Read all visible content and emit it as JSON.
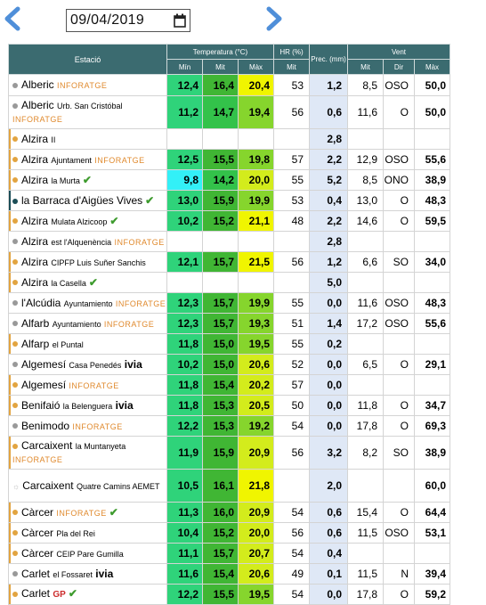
{
  "date": "09/04/2019",
  "headers": {
    "station": "Estació",
    "temp": "Temperatura (°C)",
    "hr": "HR (%)",
    "prec": "Prec. (mm)",
    "wind": "Vent",
    "t_min": "Mín",
    "t_mit": "Mit",
    "t_max": "Màx",
    "hr_mit": "Mit",
    "w_mit": "Mit",
    "w_dir": "Dir",
    "w_max": "Màx"
  },
  "colors": {
    "header": "#3b6b70",
    "prec_bg": "#dfe8f6",
    "yellow": "#f0f500",
    "cyan": "#33f0f7"
  },
  "rows": [
    {
      "name": "Alberic",
      "sub": "",
      "brand": "INFORATGE",
      "dot": "gy",
      "tmin": "12,4",
      "tmit": "16,4",
      "tmax": "20,4",
      "hr": "53",
      "prec": "1,2",
      "wm": "8,5",
      "wd": "OSO",
      "wx": "50,0",
      "c": [
        "#2fd37a",
        "#40b634",
        "#f0f500"
      ],
      "h": 24
    },
    {
      "name": "Alberic",
      "sub": "Urb. San Cristóbal",
      "brand": "INFORATGE",
      "dot": "gy",
      "tmin": "11,2",
      "tmit": "14,7",
      "tmax": "19,4",
      "hr": "56",
      "prec": "0,6",
      "wm": "11,6",
      "wd": "O",
      "wx": "50,0",
      "c": [
        "#2fd37a",
        "#33c24a",
        "#86d52d"
      ],
      "h": 37
    },
    {
      "name": "Alzira",
      "sub": "II",
      "brand": "",
      "dot": "or",
      "tmin": "",
      "tmit": "",
      "tmax": "",
      "hr": "",
      "prec": "2,8",
      "wm": "",
      "wd": "",
      "wx": "",
      "c": [
        "",
        "",
        ""
      ],
      "h": 22
    },
    {
      "name": "Alzira",
      "sub": "Ajuntament",
      "brand": "INFORATGE",
      "dot": "or",
      "tmin": "12,5",
      "tmit": "15,5",
      "tmax": "19,8",
      "hr": "57",
      "prec": "2,2",
      "wm": "12,9",
      "wd": "OSO",
      "wx": "55,6",
      "c": [
        "#2fd37a",
        "#40b634",
        "#86d52d"
      ],
      "h": 22
    },
    {
      "name": "Alzira",
      "sub": "la Murta",
      "brand": "",
      "dot": "or",
      "tick": true,
      "tmin": "9,8",
      "tmit": "14,2",
      "tmax": "20,0",
      "hr": "55",
      "prec": "5,2",
      "wm": "8,5",
      "wd": "ONO",
      "wx": "38,9",
      "c": [
        "#33f0f7",
        "#33c24a",
        "#d3ec1c"
      ],
      "h": 22
    },
    {
      "name": "la Barraca d'Aigües Vives",
      "sub": "",
      "brand": "",
      "dot": "tl",
      "tick": true,
      "tmin": "13,0",
      "tmit": "15,9",
      "tmax": "19,9",
      "hr": "53",
      "prec": "0,4",
      "wm": "13,0",
      "wd": "O",
      "wx": "48,3",
      "c": [
        "#2fd37a",
        "#40b634",
        "#86d52d"
      ],
      "h": 22
    },
    {
      "name": "Alzira",
      "sub": "Mulata Alzicoop",
      "brand": "",
      "dot": "or",
      "tick": true,
      "tmin": "10,2",
      "tmit": "15,2",
      "tmax": "21,1",
      "hr": "48",
      "prec": "2,2",
      "wm": "14,6",
      "wd": "O",
      "wx": "59,5",
      "c": [
        "#2fd37a",
        "#40b634",
        "#f0f500"
      ],
      "h": 22
    },
    {
      "name": "Alzira",
      "sub": "est l'Alquenència",
      "brand": "INFORATGE",
      "dot": "gy",
      "tmin": "",
      "tmit": "",
      "tmax": "",
      "hr": "",
      "prec": "2,8",
      "wm": "",
      "wd": "",
      "wx": "",
      "c": [
        "",
        "",
        ""
      ],
      "h": 22
    },
    {
      "name": "Alzira",
      "sub": "CIPFP Luis Suñer Sanchis",
      "brand": "",
      "dot": "or",
      "tmin": "12,1",
      "tmit": "15,7",
      "tmax": "21,5",
      "hr": "56",
      "prec": "1,2",
      "wm": "6,6",
      "wd": "SO",
      "wx": "34,0",
      "c": [
        "#2fd37a",
        "#40b634",
        "#f0f500"
      ],
      "h": 22
    },
    {
      "name": "Alzira",
      "sub": "la Casella",
      "brand": "",
      "dot": "or",
      "tick": true,
      "tmin": "",
      "tmit": "",
      "tmax": "",
      "hr": "",
      "prec": "5,0",
      "wm": "",
      "wd": "",
      "wx": "",
      "c": [
        "",
        "",
        ""
      ],
      "h": 22
    },
    {
      "name": "l'Alcúdia",
      "sub": "Ayuntamiento",
      "brand": "INFORATGE",
      "dot": "gy",
      "tmin": "12,3",
      "tmit": "15,7",
      "tmax": "19,9",
      "hr": "55",
      "prec": "0,0",
      "wm": "11,6",
      "wd": "OSO",
      "wx": "48,3",
      "c": [
        "#2fd37a",
        "#40b634",
        "#86d52d"
      ],
      "h": 22
    },
    {
      "name": "Alfarb",
      "sub": "Ayuntamiento",
      "brand": "INFORATGE",
      "dot": "gy",
      "tmin": "12,3",
      "tmit": "15,7",
      "tmax": "19,3",
      "hr": "51",
      "prec": "1,4",
      "wm": "17,2",
      "wd": "OSO",
      "wx": "55,6",
      "c": [
        "#2fd37a",
        "#40b634",
        "#86d52d"
      ],
      "h": 22
    },
    {
      "name": "Alfarp",
      "sub": "el Puntal",
      "brand": "",
      "dot": "or",
      "tmin": "11,8",
      "tmit": "15,0",
      "tmax": "19,5",
      "hr": "55",
      "prec": "0,2",
      "wm": "",
      "wd": "",
      "wx": "",
      "c": [
        "#2fd37a",
        "#40b634",
        "#86d52d"
      ],
      "h": 22
    },
    {
      "name": "Algemesí",
      "sub": "Casa Penedés",
      "brand": "ivia",
      "dot": "gy",
      "tmin": "10,2",
      "tmit": "15,0",
      "tmax": "20,6",
      "hr": "52",
      "prec": "0,0",
      "wm": "6,5",
      "wd": "O",
      "wx": "29,1",
      "c": [
        "#2fd37a",
        "#40b634",
        "#d3ec1c"
      ],
      "h": 22
    },
    {
      "name": "Algemesí",
      "sub": "",
      "brand": "INFORATGE",
      "dot": "or",
      "tmin": "11,8",
      "tmit": "15,4",
      "tmax": "20,2",
      "hr": "57",
      "prec": "0,0",
      "wm": "",
      "wd": "",
      "wx": "",
      "c": [
        "#2fd37a",
        "#40b634",
        "#d3ec1c"
      ],
      "h": 22
    },
    {
      "name": "Benifaió",
      "sub": "la Belenguera",
      "brand": "ivia",
      "dot": "or",
      "tmin": "11,8",
      "tmit": "15,3",
      "tmax": "20,5",
      "hr": "50",
      "prec": "0,0",
      "wm": "11,8",
      "wd": "O",
      "wx": "34,7",
      "c": [
        "#2fd37a",
        "#40b634",
        "#d3ec1c"
      ],
      "h": 22
    },
    {
      "name": "Benimodo",
      "sub": "",
      "brand": "INFORATGE",
      "dot": "gy",
      "tmin": "12,2",
      "tmit": "15,3",
      "tmax": "19,2",
      "hr": "54",
      "prec": "0,0",
      "wm": "17,8",
      "wd": "O",
      "wx": "69,3",
      "c": [
        "#2fd37a",
        "#40b634",
        "#86d52d"
      ],
      "h": 22
    },
    {
      "name": "Carcaixent",
      "sub": "la Muntanyeta",
      "brand": "INFORATGE",
      "dot": "or",
      "tmin": "11,9",
      "tmit": "15,9",
      "tmax": "20,9",
      "hr": "56",
      "prec": "3,2",
      "wm": "8,2",
      "wd": "SO",
      "wx": "38,9",
      "c": [
        "#2fd37a",
        "#40b634",
        "#d3ec1c"
      ],
      "h": 37
    },
    {
      "name": "Carcaixent",
      "sub": "Quatre Camins AEMET",
      "brand": "",
      "dot": "sun",
      "tmin": "10,5",
      "tmit": "16,1",
      "tmax": "21,8",
      "hr": "",
      "prec": "2,0",
      "wm": "",
      "wd": "",
      "wx": "60,0",
      "c": [
        "#2fd37a",
        "#40b634",
        "#f0f500"
      ],
      "h": 37
    },
    {
      "name": "Càrcer",
      "sub": "",
      "brand": "INFORATGE",
      "dot": "or",
      "tick": true,
      "tmin": "11,3",
      "tmit": "16,0",
      "tmax": "20,9",
      "hr": "54",
      "prec": "0,6",
      "wm": "15,4",
      "wd": "O",
      "wx": "64,4",
      "c": [
        "#2fd37a",
        "#40b634",
        "#d3ec1c"
      ],
      "h": 22
    },
    {
      "name": "Càrcer",
      "sub": "Pla del Rei",
      "brand": "",
      "dot": "or",
      "tmin": "10,4",
      "tmit": "15,2",
      "tmax": "20,0",
      "hr": "56",
      "prec": "0,6",
      "wm": "11,5",
      "wd": "OSO",
      "wx": "53,1",
      "c": [
        "#2fd37a",
        "#40b634",
        "#d3ec1c"
      ],
      "h": 22
    },
    {
      "name": "Càrcer",
      "sub": "CEIP Pare Gumilla",
      "brand": "",
      "dot": "or",
      "tmin": "11,1",
      "tmit": "15,7",
      "tmax": "20,7",
      "hr": "54",
      "prec": "0,4",
      "wm": "",
      "wd": "",
      "wx": "",
      "c": [
        "#2fd37a",
        "#40b634",
        "#d3ec1c"
      ],
      "h": 22
    },
    {
      "name": "Carlet",
      "sub": "el Fossaret",
      "brand": "ivia",
      "dot": "gy",
      "tmin": "11,6",
      "tmit": "15,4",
      "tmax": "20,6",
      "hr": "49",
      "prec": "0,1",
      "wm": "11,5",
      "wd": "N",
      "wx": "39,4",
      "c": [
        "#2fd37a",
        "#40b634",
        "#d3ec1c"
      ],
      "h": 22
    },
    {
      "name": "Carlet",
      "sub": "",
      "brand": "GP",
      "dot": "or",
      "tick": true,
      "tmin": "12,2",
      "tmit": "15,5",
      "tmax": "19,5",
      "hr": "54",
      "prec": "0,0",
      "wm": "17,8",
      "wd": "O",
      "wx": "59,2",
      "c": [
        "#2fd37a",
        "#40b634",
        "#86d52d"
      ],
      "h": 22
    }
  ]
}
